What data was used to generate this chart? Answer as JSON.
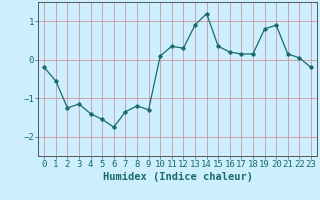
{
  "title": "",
  "xlabel": "Humidex (Indice chaleur)",
  "ylabel": "",
  "x": [
    0,
    1,
    2,
    3,
    4,
    5,
    6,
    7,
    8,
    9,
    10,
    11,
    12,
    13,
    14,
    15,
    16,
    17,
    18,
    19,
    20,
    21,
    22,
    23
  ],
  "y": [
    -0.2,
    -0.55,
    -1.25,
    -1.15,
    -1.4,
    -1.55,
    -1.75,
    -1.35,
    -1.2,
    -1.3,
    0.1,
    0.35,
    0.3,
    0.9,
    1.2,
    0.35,
    0.2,
    0.15,
    0.15,
    0.8,
    0.9,
    0.15,
    0.05,
    -0.2
  ],
  "line_color": "#1a6b6b",
  "marker": "D",
  "marker_size": 1.8,
  "line_width": 0.9,
  "bg_color": "#cceeff",
  "grid_color": "#cc8888",
  "ylim": [
    -2.5,
    1.5
  ],
  "yticks": [
    -2,
    -1,
    0,
    1
  ],
  "xticks": [
    0,
    1,
    2,
    3,
    4,
    5,
    6,
    7,
    8,
    9,
    10,
    11,
    12,
    13,
    14,
    15,
    16,
    17,
    18,
    19,
    20,
    21,
    22,
    23
  ],
  "xlabel_fontsize": 7.5,
  "tick_fontsize": 6.5
}
